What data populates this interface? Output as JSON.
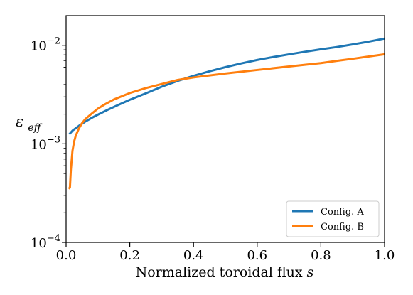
{
  "chart_data": {
    "type": "line",
    "xlabel": "Normalized toroidal flux s",
    "xlabel_main": "Normalized toroidal flux",
    "xlabel_var": "s",
    "ylabel": "εeff",
    "ylabel_sym": "ε",
    "ylabel_sub": "eff",
    "xlim": [
      0,
      1
    ],
    "ylim": [
      0.0001,
      0.02
    ],
    "yscale": "log",
    "grid": false,
    "legend_position": "lower-right",
    "x_ticks": [
      {
        "value": 0.0,
        "label": "0.0"
      },
      {
        "value": 0.2,
        "label": "0.2"
      },
      {
        "value": 0.4,
        "label": "0.4"
      },
      {
        "value": 0.6,
        "label": "0.6"
      },
      {
        "value": 0.8,
        "label": "0.8"
      },
      {
        "value": 1.0,
        "label": "1.0"
      }
    ],
    "y_ticks": [
      {
        "value": 0.0001,
        "base": "10",
        "exp": "−4"
      },
      {
        "value": 0.001,
        "base": "10",
        "exp": "−3"
      },
      {
        "value": 0.01,
        "base": "10",
        "exp": "−2"
      }
    ],
    "series": [
      {
        "name": "Config. A",
        "color": "#1f77b4",
        "x": [
          0.01,
          0.02,
          0.04,
          0.06,
          0.08,
          0.1,
          0.13,
          0.16,
          0.2,
          0.25,
          0.3,
          0.35,
          0.4,
          0.45,
          0.5,
          0.55,
          0.6,
          0.65,
          0.7,
          0.75,
          0.8,
          0.85,
          0.9,
          0.95,
          1.0
        ],
        "y": [
          0.00125,
          0.00136,
          0.00152,
          0.00168,
          0.00183,
          0.00198,
          0.00221,
          0.00245,
          0.0028,
          0.00325,
          0.0038,
          0.00435,
          0.0049,
          0.00545,
          0.006,
          0.00655,
          0.0071,
          0.0076,
          0.0081,
          0.0086,
          0.0091,
          0.0096,
          0.0102,
          0.0109,
          0.0117
        ]
      },
      {
        "name": "Config. B",
        "color": "#ff7f0e",
        "x": [
          0.008,
          0.012,
          0.015,
          0.02,
          0.025,
          0.03,
          0.04,
          0.05,
          0.06,
          0.08,
          0.1,
          0.12,
          0.15,
          0.2,
          0.25,
          0.3,
          0.35,
          0.4,
          0.5,
          0.6,
          0.7,
          0.8,
          0.85,
          0.9,
          0.95,
          1.0
        ],
        "y": [
          0.00035,
          0.00036,
          0.00055,
          0.00085,
          0.00105,
          0.0012,
          0.00143,
          0.00162,
          0.00178,
          0.00202,
          0.00228,
          0.0025,
          0.00282,
          0.00328,
          0.00368,
          0.00405,
          0.00445,
          0.00472,
          0.00518,
          0.00562,
          0.0061,
          0.0066,
          0.00695,
          0.0073,
          0.0077,
          0.0081
        ]
      }
    ]
  }
}
